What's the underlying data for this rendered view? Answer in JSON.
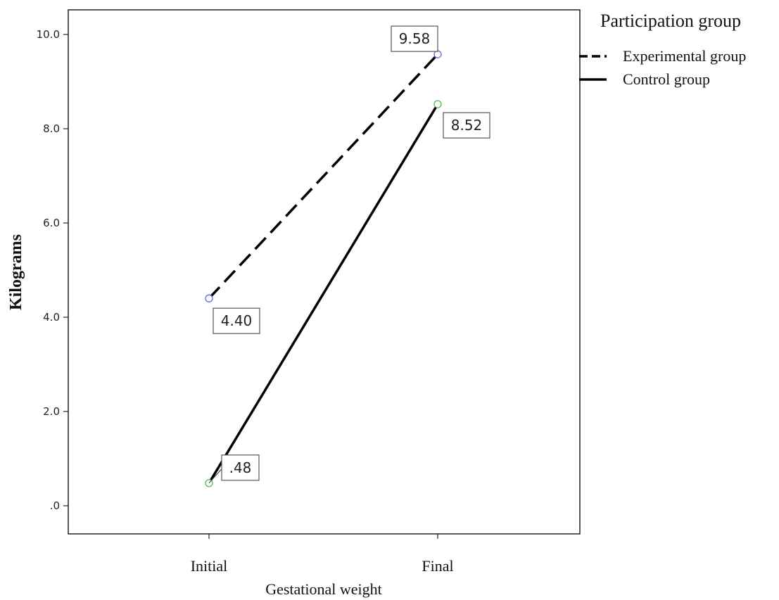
{
  "chart_data": {
    "type": "line",
    "title": "",
    "xlabel": "Gestational weight",
    "ylabel": "Kilograms",
    "categories": [
      "Initial",
      "Final"
    ],
    "ylim": [
      -0.3,
      11.0
    ],
    "yticks": [
      {
        "value": 0,
        "label": ".0"
      },
      {
        "value": 2,
        "label": "2.0"
      },
      {
        "value": 4,
        "label": "4.0"
      },
      {
        "value": 6,
        "label": "6.0"
      },
      {
        "value": 8,
        "label": "8.0"
      },
      {
        "value": 10,
        "label": "10.0"
      }
    ],
    "grid": false,
    "legend": {
      "title": "Participation group",
      "placement": "right"
    },
    "series": [
      {
        "name": "Experimental group",
        "values": [
          4.4,
          9.58
        ],
        "labels": [
          "4.40",
          "9.58"
        ],
        "line_style": "dashed",
        "marker_color": "#5b6fd6"
      },
      {
        "name": "Control group",
        "values": [
          0.48,
          8.52
        ],
        "labels": [
          ".48",
          "8.52"
        ],
        "line_style": "solid",
        "marker_color": "#4fbf4f"
      }
    ]
  }
}
